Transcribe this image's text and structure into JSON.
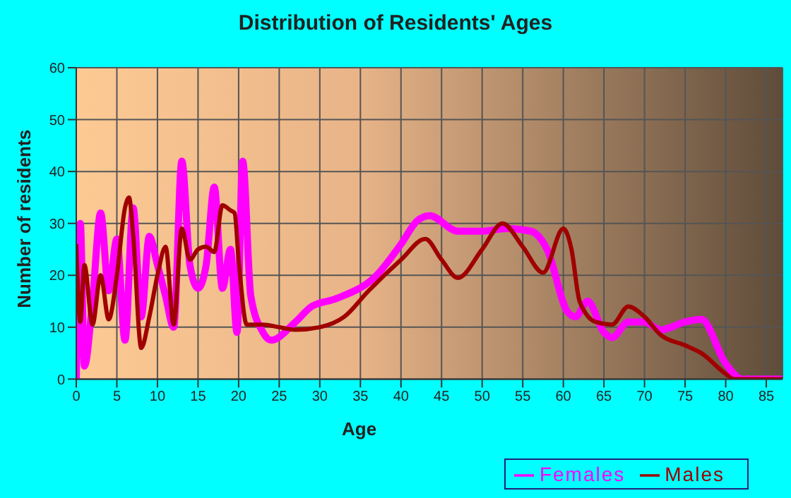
{
  "chart_data": {
    "type": "line",
    "title": "Distribution of Residents' Ages",
    "xlabel": "Age",
    "ylabel": "Number of residents",
    "xlim": [
      0,
      87
    ],
    "xticks": [
      0,
      5,
      10,
      15,
      20,
      25,
      30,
      35,
      40,
      45,
      50,
      55,
      60,
      65,
      70,
      75,
      80,
      85
    ],
    "ylim": [
      0,
      60
    ],
    "yticks": [
      0,
      10,
      20,
      30,
      40,
      50,
      60
    ],
    "grid": true,
    "legend": "bottom right",
    "marker": "none",
    "series": [
      {
        "name": "Males",
        "color": "#a00000",
        "x": [
          0,
          0.5,
          1,
          2,
          3,
          4,
          5,
          6,
          6.5,
          7,
          8,
          9,
          10,
          11,
          12,
          13,
          14,
          15,
          16,
          17,
          18,
          19,
          19.5,
          20,
          21,
          23,
          25,
          27,
          30,
          33,
          36,
          40,
          43,
          45,
          47,
          50,
          52.5,
          55,
          57.5,
          60,
          61,
          62,
          64,
          66,
          68,
          70,
          72,
          75,
          77,
          80,
          81,
          87
        ],
        "values": [
          26,
          11,
          22,
          10.5,
          20,
          11.5,
          20,
          33,
          35,
          28,
          6,
          12,
          20,
          25.5,
          10.5,
          29,
          23,
          25,
          25.5,
          24.5,
          33.5,
          32.5,
          32,
          23,
          10.5,
          10.5,
          10,
          9.5,
          10,
          12,
          17,
          23,
          27,
          23,
          19.5,
          25,
          30,
          25.5,
          20.5,
          29,
          25,
          15,
          11,
          10.5,
          14,
          12,
          8.5,
          6.5,
          5,
          1,
          0,
          0
        ]
      },
      {
        "name": "Females",
        "color": "#ff00ff",
        "x": [
          0,
          0.5,
          1,
          2,
          3,
          4,
          5,
          6,
          7,
          8,
          9,
          10,
          11,
          12,
          13,
          14,
          15,
          16,
          17,
          18,
          19,
          19.8,
          20.5,
          21.5,
          23,
          24,
          27,
          29,
          32,
          37,
          40,
          42,
          43.5,
          47,
          50,
          53,
          56,
          58,
          60.5,
          61.5,
          63,
          65,
          66,
          68,
          70,
          72,
          75,
          77,
          80,
          82,
          87
        ],
        "values": [
          0,
          30,
          2.5,
          15,
          32,
          17,
          27,
          7.5,
          33,
          12,
          27.5,
          22,
          16,
          10,
          42,
          22,
          17.5,
          22,
          37,
          17.5,
          25,
          9,
          42,
          16,
          9,
          7.5,
          11,
          14,
          15.5,
          20,
          26,
          30.5,
          31.5,
          28.5,
          28.5,
          29,
          28.5,
          25,
          13,
          12,
          15,
          9,
          8,
          11,
          11,
          9.5,
          11,
          11.5,
          3,
          0,
          0
        ]
      }
    ]
  }
}
